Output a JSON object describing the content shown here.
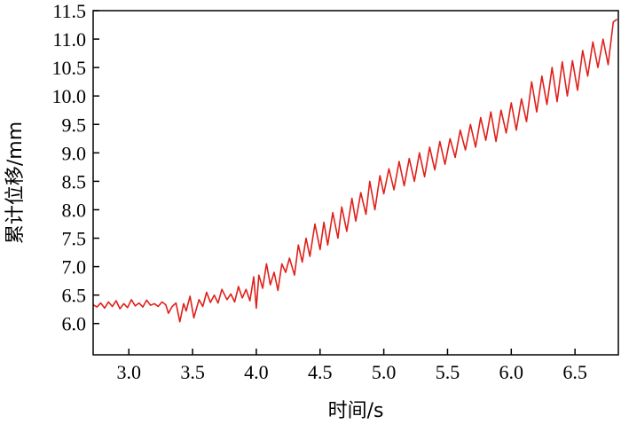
{
  "chart_data": {
    "type": "line",
    "xlabel": "时间/s",
    "ylabel": "累计位移/mm",
    "xlim": [
      2.72,
      6.84
    ],
    "ylim": [
      5.45,
      11.5
    ],
    "x_ticks": [
      {
        "value": 3.0,
        "label": "3.0"
      },
      {
        "value": 3.5,
        "label": "3.5"
      },
      {
        "value": 4.0,
        "label": "4.0"
      },
      {
        "value": 4.5,
        "label": "4.5"
      },
      {
        "value": 5.0,
        "label": "5.0"
      },
      {
        "value": 5.5,
        "label": "5.5"
      },
      {
        "value": 6.0,
        "label": "6.0"
      },
      {
        "value": 6.5,
        "label": "6.5"
      }
    ],
    "y_ticks": [
      {
        "value": 6.0,
        "label": "6.0"
      },
      {
        "value": 6.5,
        "label": "6.5"
      },
      {
        "value": 7.0,
        "label": "7.0"
      },
      {
        "value": 7.5,
        "label": "7.5"
      },
      {
        "value": 8.0,
        "label": "8.0"
      },
      {
        "value": 8.5,
        "label": "8.5"
      },
      {
        "value": 9.0,
        "label": "9.0"
      },
      {
        "value": 9.5,
        "label": "9.5"
      },
      {
        "value": 10.0,
        "label": "10.0"
      },
      {
        "value": 10.5,
        "label": "10.5"
      },
      {
        "value": 11.0,
        "label": "11.0"
      },
      {
        "value": 11.5,
        "label": "11.5"
      }
    ],
    "grid": false,
    "series": [
      {
        "color": "#e0201b",
        "x": [
          2.72,
          2.75,
          2.78,
          2.81,
          2.84,
          2.87,
          2.9,
          2.93,
          2.96,
          2.99,
          3.02,
          3.05,
          3.08,
          3.11,
          3.14,
          3.17,
          3.2,
          3.23,
          3.26,
          3.29,
          3.31,
          3.34,
          3.37,
          3.4,
          3.43,
          3.45,
          3.48,
          3.51,
          3.55,
          3.58,
          3.61,
          3.64,
          3.67,
          3.7,
          3.73,
          3.77,
          3.8,
          3.83,
          3.86,
          3.89,
          3.92,
          3.95,
          3.98,
          4.0,
          4.02,
          4.05,
          4.08,
          4.11,
          4.14,
          4.17,
          4.2,
          4.23,
          4.26,
          4.3,
          4.33,
          4.36,
          4.39,
          4.42,
          4.46,
          4.5,
          4.53,
          4.56,
          4.6,
          4.64,
          4.67,
          4.71,
          4.75,
          4.78,
          4.82,
          4.86,
          4.89,
          4.93,
          4.97,
          5.0,
          5.04,
          5.08,
          5.12,
          5.16,
          5.2,
          5.24,
          5.28,
          5.32,
          5.36,
          5.4,
          5.44,
          5.48,
          5.52,
          5.56,
          5.6,
          5.64,
          5.68,
          5.72,
          5.76,
          5.8,
          5.84,
          5.88,
          5.92,
          5.96,
          6.0,
          6.04,
          6.08,
          6.12,
          6.16,
          6.2,
          6.24,
          6.28,
          6.32,
          6.36,
          6.4,
          6.44,
          6.48,
          6.52,
          6.56,
          6.6,
          6.64,
          6.68,
          6.72,
          6.76,
          6.8,
          6.83
        ],
        "y": [
          6.33,
          6.29,
          6.36,
          6.27,
          6.38,
          6.3,
          6.4,
          6.26,
          6.35,
          6.28,
          6.42,
          6.31,
          6.36,
          6.29,
          6.41,
          6.32,
          6.35,
          6.3,
          6.38,
          6.33,
          6.18,
          6.3,
          6.36,
          6.03,
          6.35,
          6.22,
          6.48,
          6.1,
          6.42,
          6.3,
          6.55,
          6.37,
          6.5,
          6.36,
          6.6,
          6.42,
          6.52,
          6.38,
          6.65,
          6.45,
          6.6,
          6.4,
          6.82,
          6.27,
          6.85,
          6.62,
          7.05,
          6.68,
          6.9,
          6.58,
          7.05,
          6.9,
          7.15,
          6.85,
          7.38,
          7.08,
          7.5,
          7.18,
          7.75,
          7.3,
          7.78,
          7.38,
          7.95,
          7.5,
          8.05,
          7.62,
          8.2,
          7.8,
          8.3,
          7.92,
          8.5,
          8.0,
          8.6,
          8.28,
          8.72,
          8.35,
          8.85,
          8.42,
          8.9,
          8.5,
          9.0,
          8.58,
          9.1,
          8.7,
          9.2,
          8.8,
          9.25,
          8.92,
          9.4,
          9.05,
          9.5,
          9.1,
          9.62,
          9.22,
          9.72,
          9.2,
          9.75,
          9.35,
          9.88,
          9.4,
          9.95,
          9.55,
          10.25,
          9.72,
          10.35,
          9.85,
          10.5,
          9.9,
          10.6,
          10.0,
          10.62,
          10.1,
          10.8,
          10.35,
          10.95,
          10.5,
          11.0,
          10.55,
          11.3,
          11.35
        ]
      }
    ]
  }
}
